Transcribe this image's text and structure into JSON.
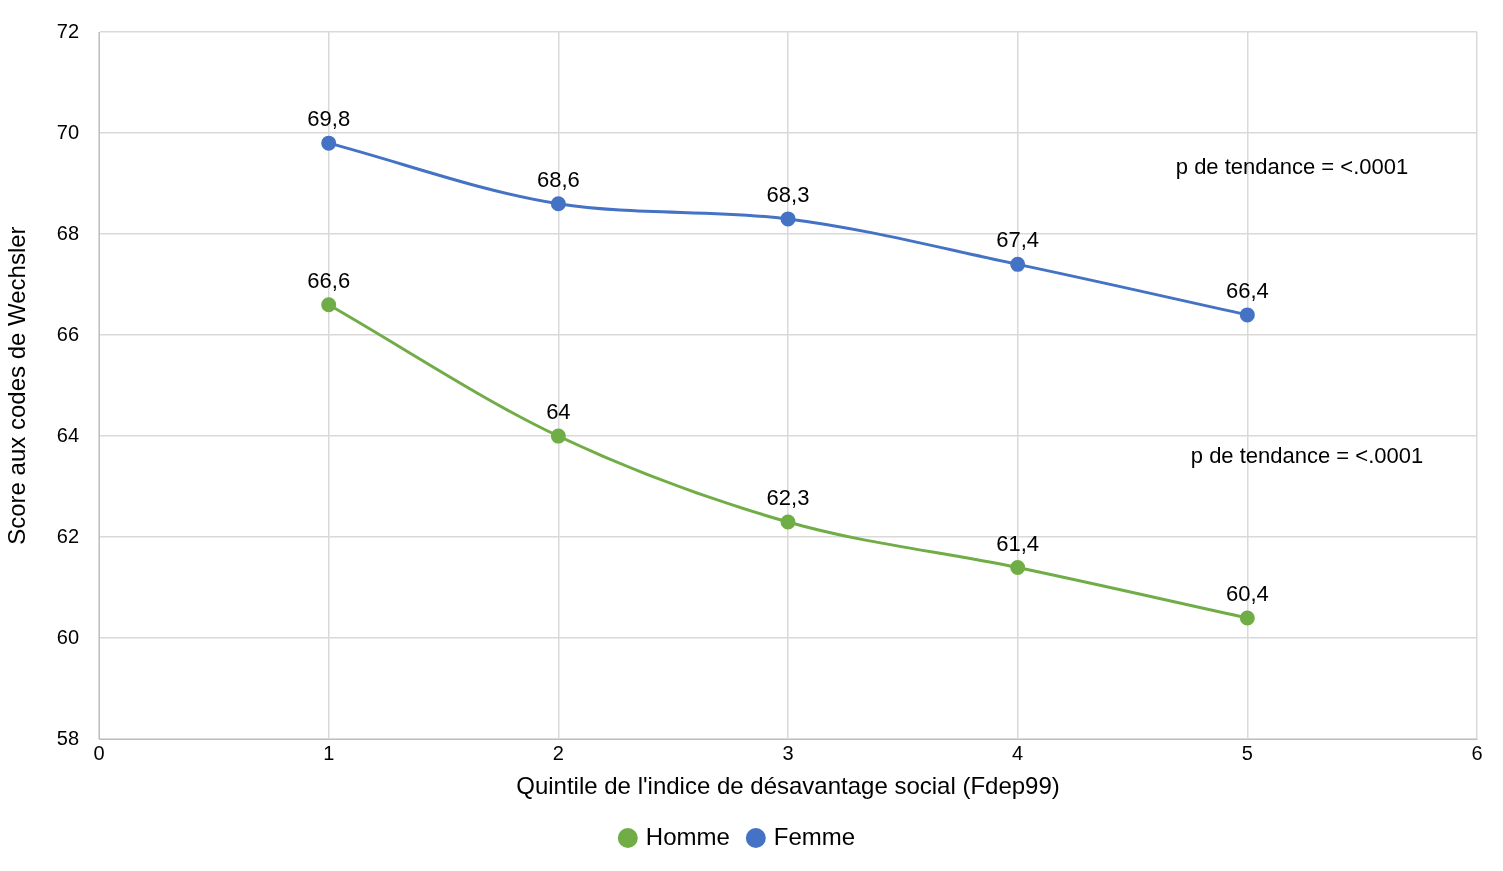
{
  "chart_data": {
    "type": "line",
    "xlabel": "Quintile de l'indice de désavantage social (Fdep99)",
    "ylabel": "Score aux codes de Wechsler",
    "x": [
      1,
      2,
      3,
      4,
      5
    ],
    "series": [
      {
        "name": "Homme",
        "color": "#70ad47",
        "values": [
          66.6,
          64,
          62.3,
          61.4,
          60.4
        ],
        "value_labels": [
          "66,6",
          "64",
          "62,3",
          "61,4",
          "60,4"
        ]
      },
      {
        "name": "Femme",
        "color": "#4472c4",
        "values": [
          69.8,
          68.6,
          68.3,
          67.4,
          66.4
        ],
        "value_labels": [
          "69,8",
          "68,6",
          "68,3",
          "67,4",
          "66,4"
        ]
      }
    ],
    "xlim": [
      0,
      6
    ],
    "xticks": [
      0,
      1,
      2,
      3,
      4,
      5,
      6
    ],
    "ylim": [
      58,
      72
    ],
    "yticks": [
      58,
      60,
      62,
      64,
      66,
      68,
      70,
      72
    ],
    "grid": true,
    "legend": "bottom",
    "marker": "circle",
    "line_style": "solid",
    "annotations": [
      "p de tendance = <.0001",
      "p de tendance = <.0001"
    ]
  }
}
